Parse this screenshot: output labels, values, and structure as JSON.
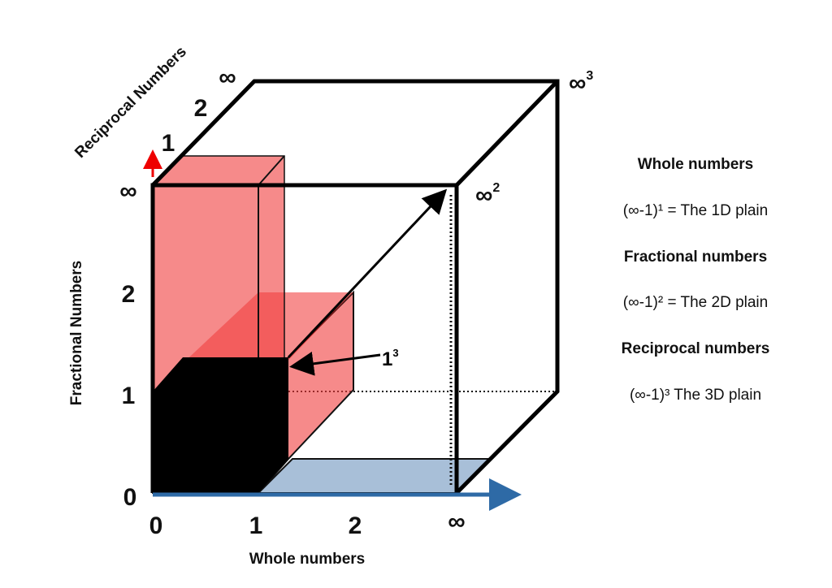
{
  "axes": {
    "depth_label": "Reciprocal Numbers",
    "vertical_label": "Fractional Numbers",
    "horizontal_label": "Whole numbers"
  },
  "x_ticks": [
    "0",
    "1",
    "2",
    "∞"
  ],
  "y_ticks": [
    "0",
    "1",
    "2",
    "∞"
  ],
  "depth_ticks": [
    "1",
    "2",
    "∞"
  ],
  "corner_labels": [
    {
      "base": "∞",
      "sup": "3"
    },
    {
      "base": "∞",
      "sup": "2"
    },
    {
      "base": "1",
      "sup": "3"
    }
  ],
  "legend": [
    "Whole numbers",
    "(∞-1)¹ = The 1D plain",
    "Fractional numbers",
    "(∞-1)² = The 2D plain",
    "Reciprocal numbers",
    "(∞-1)³ The 3D plain"
  ]
}
